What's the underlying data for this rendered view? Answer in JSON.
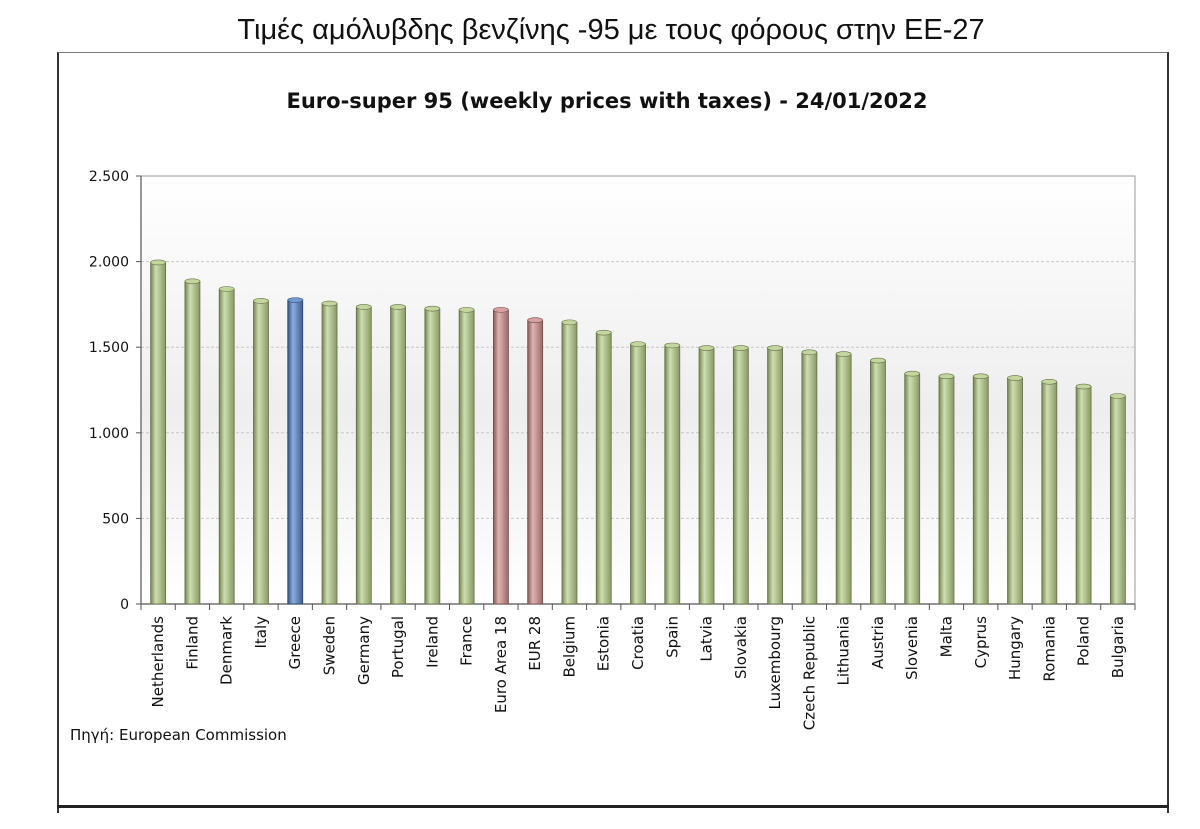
{
  "page_title": "Τιμές αμόλυβδης βενζίνης -95 με τους φόρους στην ΕΕ-27",
  "source": "Πηγή: European Commission",
  "colors": {
    "default_bar": "#b5cc84",
    "highlight_greece": "#4f7fc7",
    "highlight_euro": "#cf8a8a",
    "gridline": "#c8c8c8"
  },
  "chart_data": {
    "type": "bar",
    "title": "Euro-super 95 (weekly prices with taxes) - 24/01/2022",
    "xlabel": "",
    "ylabel": "",
    "ylim": [
      0,
      2500
    ],
    "yticks": [
      0,
      500,
      1000,
      1500,
      2000,
      2500
    ],
    "ytick_labels": [
      "0",
      "500",
      "1.000",
      "1.500",
      "2.000",
      "2.500"
    ],
    "grid": true,
    "categories": [
      "Netherlands",
      "Finland",
      "Denmark",
      "Italy",
      "Greece",
      "Sweden",
      "Germany",
      "Portugal",
      "Ireland",
      "France",
      "Euro Area 18",
      "EUR 28",
      "Belgium",
      "Estonia",
      "Croatia",
      "Spain",
      "Latvia",
      "Slovakia",
      "Luxembourg",
      "Czech Republic",
      "Lithuania",
      "Austria",
      "Slovenia",
      "Malta",
      "Cyprus",
      "Hungary",
      "Romania",
      "Poland",
      "Bulgaria"
    ],
    "values": [
      1995,
      1885,
      1840,
      1770,
      1775,
      1755,
      1735,
      1735,
      1725,
      1718,
      1718,
      1658,
      1645,
      1585,
      1518,
      1510,
      1495,
      1495,
      1495,
      1470,
      1460,
      1422,
      1345,
      1330,
      1330,
      1320,
      1298,
      1270,
      1215
    ],
    "bar_colors": [
      "default_bar",
      "default_bar",
      "default_bar",
      "default_bar",
      "highlight_greece",
      "default_bar",
      "default_bar",
      "default_bar",
      "default_bar",
      "default_bar",
      "highlight_euro",
      "highlight_euro",
      "default_bar",
      "default_bar",
      "default_bar",
      "default_bar",
      "default_bar",
      "default_bar",
      "default_bar",
      "default_bar",
      "default_bar",
      "default_bar",
      "default_bar",
      "default_bar",
      "default_bar",
      "default_bar",
      "default_bar",
      "default_bar",
      "default_bar"
    ]
  }
}
